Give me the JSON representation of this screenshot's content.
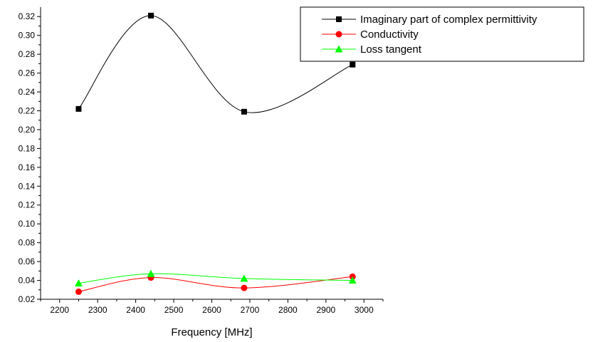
{
  "chart_data": {
    "type": "line",
    "xlabel": "Frequency [MHz]",
    "ylabel": "",
    "xlim": [
      2150,
      3050
    ],
    "ylim": [
      0.02,
      0.33
    ],
    "xticks": [
      2200,
      2300,
      2400,
      2500,
      2600,
      2700,
      2800,
      2900,
      3000
    ],
    "yticks": [
      0.02,
      0.04,
      0.06,
      0.08,
      0.1,
      0.12,
      0.14,
      0.16,
      0.18,
      0.2,
      0.22,
      0.24,
      0.26,
      0.28,
      0.3,
      0.32
    ],
    "legend_position": "top-right",
    "grid": false,
    "x": [
      2250,
      2440,
      2685,
      2970
    ],
    "series": [
      {
        "name": "Imaginary part of complex permittivity",
        "values": [
          0.222,
          0.321,
          0.219,
          0.269
        ],
        "color": "#000000",
        "marker": "square"
      },
      {
        "name": "Conductivity",
        "values": [
          0.028,
          0.043,
          0.032,
          0.044
        ],
        "color": "#ff0000",
        "marker": "circle"
      },
      {
        "name": "Loss tangent",
        "values": [
          0.037,
          0.047,
          0.042,
          0.04
        ],
        "color": "#00ff00",
        "marker": "triangle"
      }
    ]
  }
}
